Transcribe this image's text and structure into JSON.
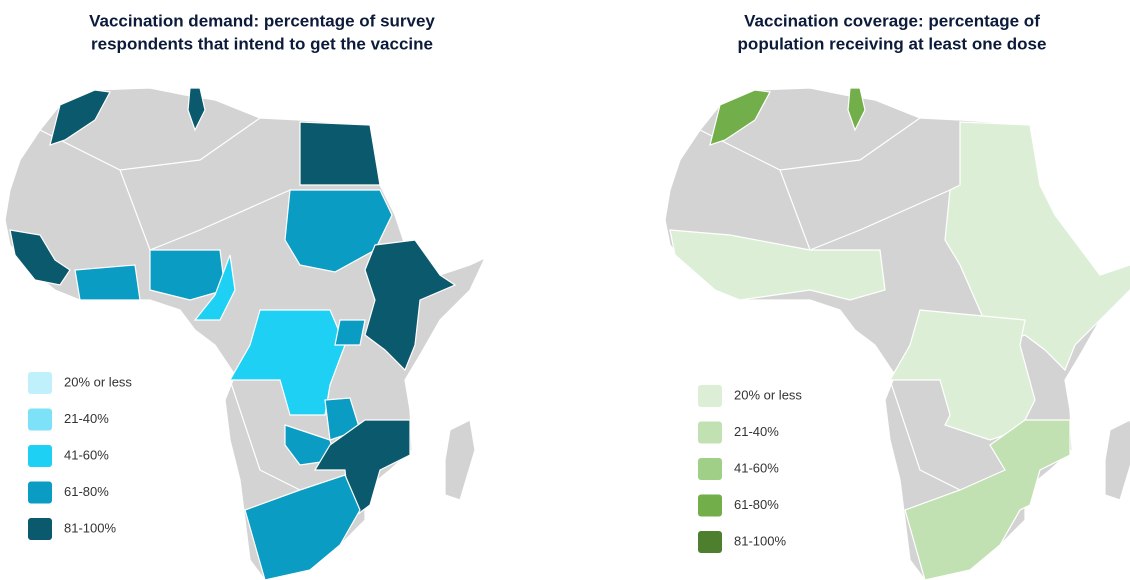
{
  "maps": [
    {
      "title": [
        "Vaccination demand: percentage of survey",
        "respondents that intend to get the vaccine"
      ],
      "legend": [
        {
          "label": "20% or less",
          "color": "#bff0fb"
        },
        {
          "label": "21-40%",
          "color": "#7de1f7"
        },
        {
          "label": "41-60%",
          "color": "#1fd0f5"
        },
        {
          "label": "61-80%",
          "color": "#0a9cc2"
        },
        {
          "label": "81-100%",
          "color": "#0b596c"
        }
      ]
    },
    {
      "title": [
        "Vaccination coverage: percentage of",
        "population receiving at least one dose"
      ],
      "legend": [
        {
          "label": "20% or less",
          "color": "#dcefd6"
        },
        {
          "label": "21-40%",
          "color": "#c2e1b3"
        },
        {
          "label": "41-60%",
          "color": "#a0d088"
        },
        {
          "label": "61-80%",
          "color": "#72ae49"
        },
        {
          "label": "81-100%",
          "color": "#4e7f2f"
        }
      ]
    }
  ]
}
